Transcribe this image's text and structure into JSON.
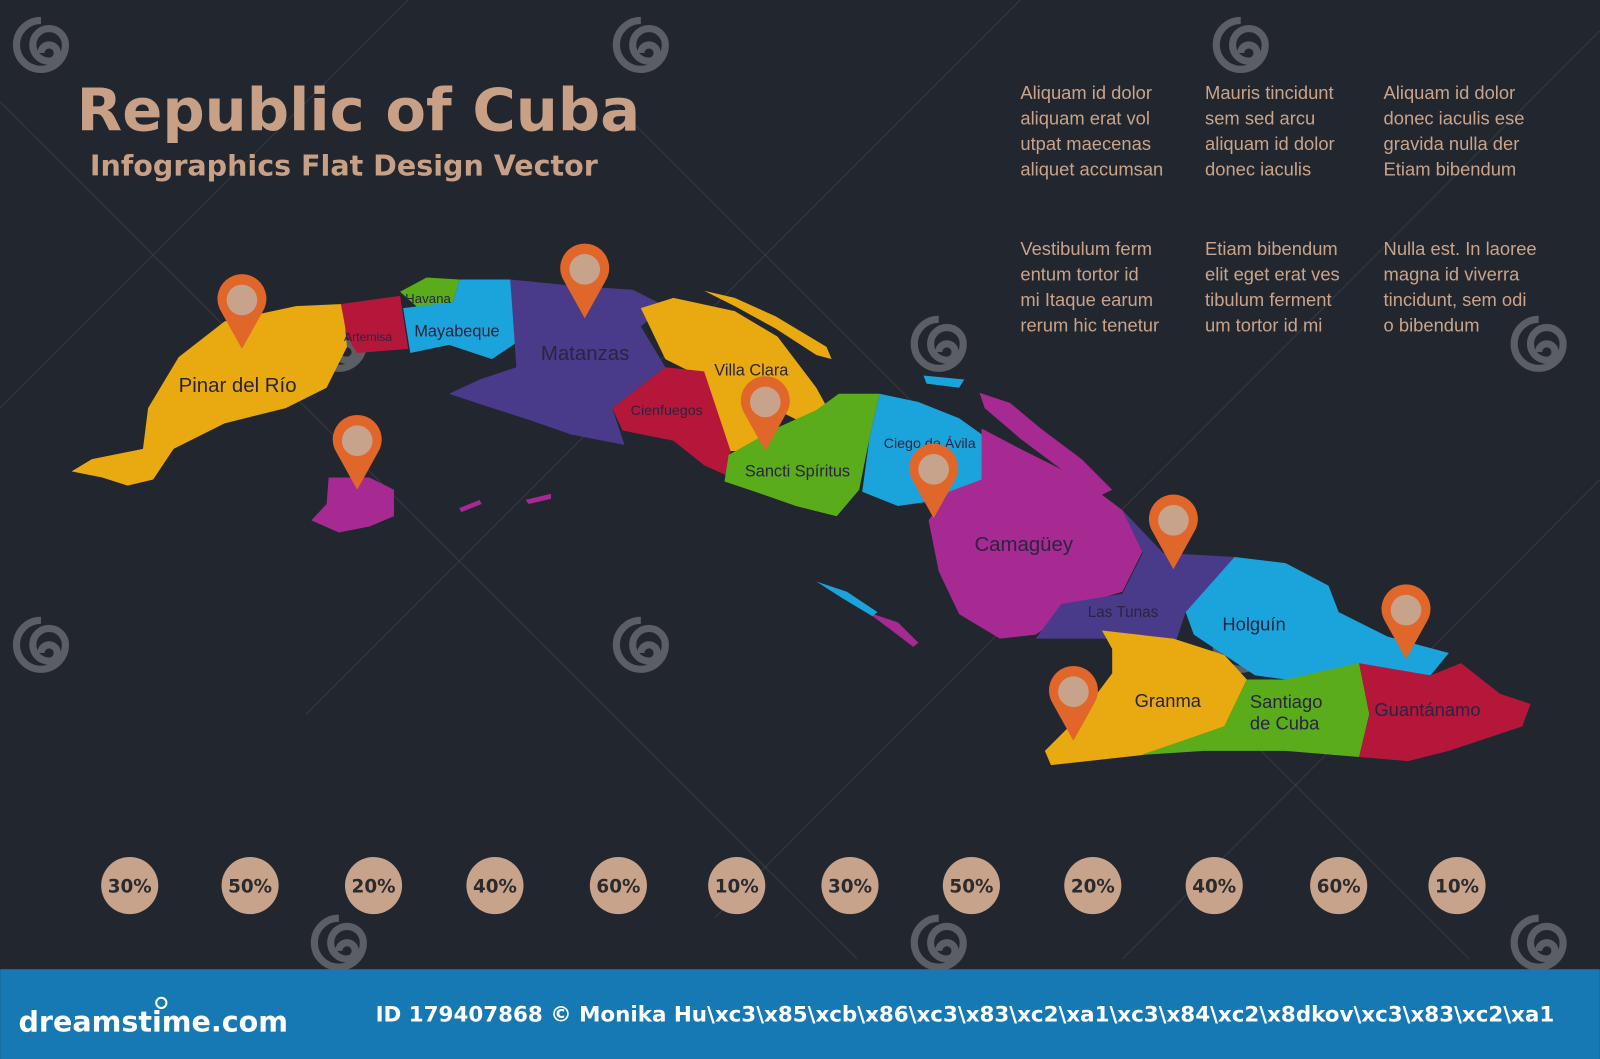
{
  "title": "Republic of Cuba",
  "subtitle": "Infographics Flat Design Vector",
  "text_blocks": [
    [
      "Aliquam id dolor",
      "aliquam erat vol",
      "utpat maecenas",
      "aliquet accumsan"
    ],
    [
      "Mauris tincidunt",
      "sem sed arcu",
      "aliquam id dolor",
      "donec iaculis"
    ],
    [
      "Aliquam id dolor",
      "donec iaculis  ese",
      "gravida nulla der",
      "Etiam bibendum"
    ],
    [
      "Vestibulum ferm",
      "entum tortor id",
      "mi Itaque earum",
      "rerum hic tenetur"
    ],
    [
      "Etiam bibendum",
      "elit eget erat ves",
      "tibulum ferment",
      "um tortor id mi"
    ],
    [
      "Nulla est. In laoree",
      "magna id viverra",
      "tincidunt, sem odi",
      "o bibendum"
    ]
  ],
  "provinces": [
    {
      "name": "Pinar del Río",
      "color": "#e8a911"
    },
    {
      "name": "Artemisa",
      "color": "#b5173a"
    },
    {
      "name": "Havana",
      "color": "#5aac1a"
    },
    {
      "name": "Mayabeque",
      "color": "#1ba4dc"
    },
    {
      "name": "Matanzas",
      "color": "#4a3b8a"
    },
    {
      "name": "Villa Clara",
      "color": "#e8a911"
    },
    {
      "name": "Cienfuegos",
      "color": "#b5173a"
    },
    {
      "name": "Sancti Spíritus",
      "color": "#5aac1a"
    },
    {
      "name": "Ciego de Ávila",
      "color": "#1ba4dc"
    },
    {
      "name": "Camagüey",
      "color": "#a62a91"
    },
    {
      "name": "Las Tunas",
      "color": "#4a3b8a"
    },
    {
      "name": "Holguín",
      "color": "#1ba4dc"
    },
    {
      "name": "Granma",
      "color": "#e8a911"
    },
    {
      "name": "Santiago de Cuba",
      "name_lines": [
        "Santiago",
        "de Cuba"
      ],
      "color": "#5aac1a"
    },
    {
      "name": "Guantánamo",
      "color": "#b5173a"
    },
    {
      "name": "",
      "color": "#a62a91"
    }
  ],
  "pin_colors": {
    "body": "#e0662a",
    "center": "#c8a38c"
  },
  "percentages": [
    "30%",
    "50%",
    "20%",
    "40%",
    "60%",
    "10%",
    "30%",
    "50%",
    "20%",
    "40%",
    "60%",
    "10%"
  ],
  "colors": {
    "background": "#22262e",
    "accent": "#c7a086",
    "footer": "#1779b4"
  },
  "footer": {
    "logo": "dreamstime.com",
    "credit": "ID 179407868 © Monika Hu\\xc3\\x85\\xcb\\x86\\xc3\\x83\\xc2\\xa1\\xc3\\x84\\xc2\\x8dkov\\xc3\\x83\\xc2\\xa1"
  },
  "watermark": "dreamstime"
}
